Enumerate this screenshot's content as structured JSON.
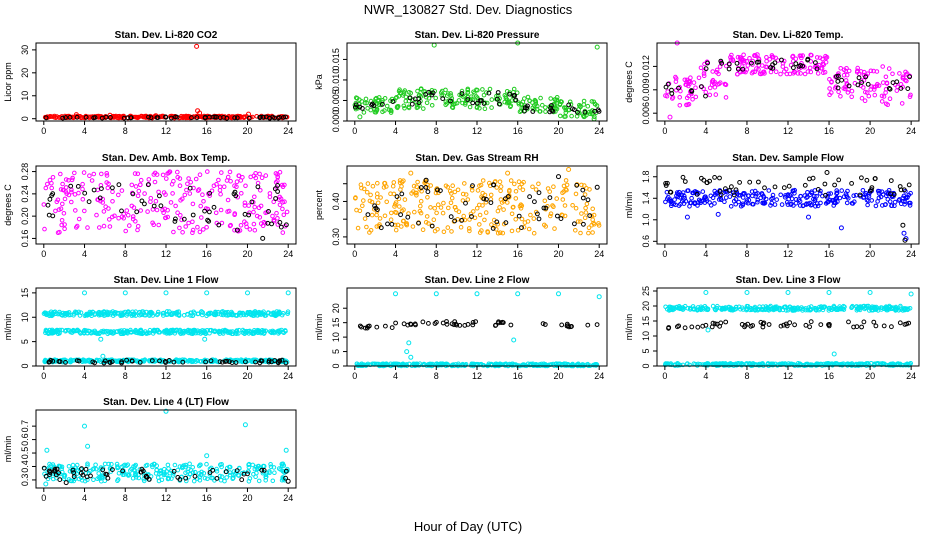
{
  "figure": {
    "title": "NWR_130827  Std. Dev. Diagnostics",
    "xlabel": "Hour of Day (UTC)"
  },
  "colors": {
    "red": "#ff0000",
    "green": "#22cc22",
    "magenta": "#ff00ff",
    "orange": "#ffa500",
    "blue": "#0000ff",
    "cyan": "#00e5ee",
    "black": "#000000"
  },
  "chart_data": [
    {
      "id": "co2",
      "type": "scatter",
      "title": "Stan. Dev. Li-820 CO2",
      "ylabel": "Licor ppm",
      "xlim": [
        0,
        24
      ],
      "ylim": [
        -1,
        33
      ],
      "xticks": [
        0,
        4,
        8,
        12,
        16,
        20,
        24
      ],
      "yticks": [
        0,
        10,
        20,
        30
      ],
      "ytick_labels": [
        "0",
        "10",
        "20",
        "30"
      ],
      "series": [
        {
          "color": "red",
          "bands": [
            [
              0,
              24,
              0.3,
              1.2
            ]
          ],
          "points": [
            [
              15.0,
              31.5
            ],
            [
              15.1,
              3.5
            ],
            [
              15.3,
              2.5
            ],
            [
              3.2,
              1.8
            ],
            [
              6.5,
              1.5
            ],
            [
              20.1,
              2.0
            ],
            [
              11,
              1.3
            ]
          ]
        },
        {
          "color": "black",
          "bands": [
            [
              0,
              24,
              0.2,
              0.8
            ]
          ],
          "points": []
        }
      ]
    },
    {
      "id": "pressure",
      "type": "scatter",
      "title": "Stan. Dev. Li-820 Pressure",
      "ylabel": "kPa",
      "xlim": [
        0,
        24
      ],
      "ylim": [
        0,
        0.019
      ],
      "xticks": [
        0,
        4,
        8,
        12,
        16,
        20,
        24
      ],
      "yticks": [
        0.0,
        0.005,
        0.01,
        0.015
      ],
      "ytick_labels": [
        "0.000",
        "0.005",
        "0.010",
        "0.015"
      ],
      "series": [
        {
          "color": "green",
          "bands": [
            [
              0,
              4,
              0.002,
              0.006
            ],
            [
              4,
              16,
              0.003,
              0.008
            ],
            [
              16,
              20,
              0.002,
              0.006
            ],
            [
              20,
              24,
              0.001,
              0.005
            ]
          ],
          "points": [
            [
              7.8,
              0.0185
            ],
            [
              16.0,
              0.019
            ],
            [
              23.8,
              0.018
            ],
            [
              0.5,
              0.001
            ],
            [
              23.5,
              0.0005
            ]
          ]
        },
        {
          "color": "black",
          "bands": [
            [
              0,
              4,
              0.003,
              0.005
            ],
            [
              4,
              16,
              0.004,
              0.007
            ],
            [
              16,
              24,
              0.002,
              0.004
            ]
          ],
          "points": []
        }
      ]
    },
    {
      "id": "temp",
      "type": "scatter",
      "title": "Stan. Dev. Li-820 Temp.",
      "ylabel": "degrees C",
      "xlim": [
        0,
        24
      ],
      "ylim": [
        0.005,
        0.015
      ],
      "xticks": [
        0,
        4,
        8,
        12,
        16,
        20,
        24
      ],
      "yticks": [
        0.006,
        0.009,
        0.012
      ],
      "ytick_labels": [
        "0.006",
        "0.009",
        "0.012"
      ],
      "series": [
        {
          "color": "magenta",
          "bands": [
            [
              0,
              3,
              0.007,
              0.011
            ],
            [
              3,
              6,
              0.008,
              0.013
            ],
            [
              6,
              16,
              0.011,
              0.0135
            ],
            [
              16,
              19,
              0.008,
              0.012
            ],
            [
              19,
              24,
              0.007,
              0.012
            ]
          ],
          "points": [
            [
              1.2,
              0.015
            ],
            [
              0.5,
              0.0055
            ],
            [
              9,
              0.0135
            ]
          ]
        },
        {
          "color": "black",
          "bands": [
            [
              0,
              4,
              0.008,
              0.01
            ],
            [
              4,
              16,
              0.0115,
              0.013
            ],
            [
              16,
              24,
              0.009,
              0.011
            ]
          ],
          "points": []
        }
      ]
    },
    {
      "id": "ambbox",
      "type": "scatter",
      "title": "Stan. Dev. Amb. Box Temp.",
      "ylabel": "degrees C",
      "xlim": [
        0,
        24
      ],
      "ylim": [
        0.15,
        0.29
      ],
      "xticks": [
        0,
        4,
        8,
        12,
        16,
        20,
        24
      ],
      "yticks": [
        0.16,
        0.2,
        0.24,
        0.28
      ],
      "ytick_labels": [
        "0.16",
        "0.20",
        "0.24",
        "0.28"
      ],
      "series": [
        {
          "color": "magenta",
          "bands": [
            [
              0,
              24,
              0.17,
              0.28
            ]
          ],
          "points": []
        },
        {
          "color": "black",
          "bands": [
            [
              0,
              24,
              0.18,
              0.26
            ]
          ],
          "points": [
            [
              21.5,
              0.16
            ],
            [
              19,
              0.175
            ]
          ]
        }
      ]
    },
    {
      "id": "rh",
      "type": "scatter",
      "title": "Stan. Dev. Gas Stream RH",
      "ylabel": "percent",
      "xlim": [
        0,
        24
      ],
      "ylim": [
        0.28,
        0.5
      ],
      "xticks": [
        0,
        4,
        8,
        12,
        16,
        20,
        24
      ],
      "yticks": [
        0.3,
        0.35,
        0.4,
        0.45
      ],
      "ytick_labels": [
        "0.30",
        "",
        "0.40",
        ""
      ],
      "series": [
        {
          "color": "orange",
          "bands": [
            [
              0,
              24,
              0.31,
              0.46
            ]
          ],
          "points": [
            [
              5.5,
              0.48
            ],
            [
              15,
              0.48
            ],
            [
              21,
              0.49
            ]
          ]
        },
        {
          "color": "black",
          "bands": [
            [
              0,
              24,
              0.32,
              0.45
            ]
          ],
          "points": [
            [
              7,
              0.46
            ],
            [
              20,
              0.47
            ],
            [
              23.8,
              0.44
            ]
          ]
        }
      ]
    },
    {
      "id": "sampleflow",
      "type": "scatter",
      "title": "Stan. Dev. Sample Flow",
      "ylabel": "ml/min",
      "xlim": [
        0,
        24
      ],
      "ylim": [
        0.55,
        2.0
      ],
      "xticks": [
        0,
        4,
        8,
        12,
        16,
        20,
        24
      ],
      "yticks": [
        0.6,
        1.0,
        1.4,
        1.8
      ],
      "ytick_labels": [
        "0.6",
        "1.0",
        "1.4",
        "1.8"
      ],
      "series": [
        {
          "color": "blue",
          "bands": [
            [
              0,
              24,
              1.25,
              1.55
            ]
          ],
          "points": [
            [
              2.2,
              1.05
            ],
            [
              17.2,
              0.85
            ],
            [
              23.3,
              0.75
            ],
            [
              23.5,
              0.65
            ],
            [
              5.2,
              1.1
            ],
            [
              14,
              1.05
            ]
          ]
        },
        {
          "color": "black",
          "bands": [
            [
              0,
              24,
              1.45,
              1.8
            ]
          ],
          "points": [
            [
              15.8,
              1.88
            ],
            [
              23.2,
              0.9
            ],
            [
              23.4,
              0.62
            ]
          ]
        }
      ]
    },
    {
      "id": "line1",
      "type": "scatter",
      "title": "Stan. Dev. Line 1 Flow",
      "ylabel": "ml/min",
      "xlim": [
        0,
        24
      ],
      "ylim": [
        0,
        16
      ],
      "xticks": [
        0,
        4,
        8,
        12,
        16,
        20,
        24
      ],
      "yticks": [
        0,
        5,
        10,
        15
      ],
      "ytick_labels": [
        "0",
        "5",
        "10",
        "15"
      ],
      "series": [
        {
          "color": "cyan",
          "bands": [
            [
              0,
              24,
              10.3,
              11.2
            ],
            [
              0,
              24,
              6.6,
              7.4
            ],
            [
              0,
              24,
              0.8,
              1.3
            ]
          ],
          "points": [
            [
              4,
              15
            ],
            [
              8,
              15
            ],
            [
              12,
              15
            ],
            [
              16,
              15
            ],
            [
              20,
              15
            ],
            [
              24,
              15
            ],
            [
              5.6,
              5.5
            ],
            [
              5.8,
              2.0
            ],
            [
              15.8,
              5.5
            ]
          ]
        },
        {
          "color": "black",
          "bands": [
            [
              0,
              24,
              0.6,
              1.2
            ]
          ],
          "points": []
        }
      ]
    },
    {
      "id": "line2",
      "type": "scatter",
      "title": "Stan. Dev. Line 2 Flow",
      "ylabel": "ml/min",
      "xlim": [
        0,
        24
      ],
      "ylim": [
        0,
        27
      ],
      "xticks": [
        0,
        4,
        8,
        12,
        16,
        20,
        24
      ],
      "yticks": [
        0,
        5,
        10,
        15,
        20
      ],
      "ytick_labels": [
        "0",
        "5",
        "10",
        "15",
        "20"
      ],
      "series": [
        {
          "color": "cyan",
          "bands": [
            [
              0,
              24,
              0.0,
              0.8
            ]
          ],
          "points": [
            [
              4,
              25
            ],
            [
              8,
              25
            ],
            [
              12,
              25
            ],
            [
              16,
              25
            ],
            [
              20,
              25
            ],
            [
              24,
              24
            ],
            [
              5.3,
              8
            ],
            [
              5.1,
              5
            ],
            [
              5.5,
              3
            ],
            [
              15.6,
              9
            ]
          ]
        },
        {
          "color": "black",
          "bands": [
            [
              0,
              4,
              13,
              14.5
            ],
            [
              4,
              20,
              14,
              15.5
            ],
            [
              20,
              24,
              13.5,
              14.5
            ]
          ],
          "points": []
        }
      ]
    },
    {
      "id": "line3",
      "type": "scatter",
      "title": "Stan. Dev. Line 3 Flow",
      "ylabel": "ml/min",
      "xlim": [
        0,
        24
      ],
      "ylim": [
        0,
        26
      ],
      "xticks": [
        0,
        4,
        8,
        12,
        16,
        20,
        24
      ],
      "yticks": [
        0,
        5,
        10,
        15,
        20,
        25
      ],
      "ytick_labels": [
        "0",
        "5",
        "10",
        "15",
        "20",
        "25"
      ],
      "series": [
        {
          "color": "cyan",
          "bands": [
            [
              0,
              24,
              18.5,
              20
            ],
            [
              0,
              24,
              0.1,
              0.9
            ]
          ],
          "points": [
            [
              4,
              24.5
            ],
            [
              8,
              24.5
            ],
            [
              12,
              24.5
            ],
            [
              16,
              24.5
            ],
            [
              20,
              24.5
            ],
            [
              24,
              24
            ],
            [
              4.2,
              12
            ],
            [
              16.5,
              4
            ]
          ]
        },
        {
          "color": "black",
          "bands": [
            [
              0,
              4,
              12.5,
              13.8
            ],
            [
              4,
              24,
              13,
              14.8
            ]
          ],
          "points": []
        }
      ]
    },
    {
      "id": "line4",
      "type": "scatter",
      "title": "Stan. Dev. Line 4 (LT) Flow",
      "ylabel": "ml/min",
      "xlim": [
        0,
        24
      ],
      "ylim": [
        0.24,
        0.82
      ],
      "xticks": [
        0,
        4,
        8,
        12,
        16,
        20,
        24
      ],
      "yticks": [
        0.3,
        0.4,
        0.5,
        0.6,
        0.7
      ],
      "ytick_labels": [
        "0.3",
        "0.4",
        "0.5",
        "0.6",
        "0.7"
      ],
      "series": [
        {
          "color": "cyan",
          "bands": [
            [
              0,
              24,
              0.29,
              0.42
            ]
          ],
          "points": [
            [
              4,
              0.7
            ],
            [
              12,
              0.81
            ],
            [
              19.8,
              0.71
            ],
            [
              4.3,
              0.55
            ],
            [
              16,
              0.48
            ],
            [
              0.3,
              0.52
            ],
            [
              23.8,
              0.52
            ],
            [
              0.2,
              0.27
            ]
          ]
        },
        {
          "color": "black",
          "bands": [
            [
              0,
              24,
              0.3,
              0.39
            ]
          ],
          "points": [
            [
              2.2,
              0.28
            ],
            [
              24,
              0.29
            ]
          ]
        }
      ]
    }
  ]
}
